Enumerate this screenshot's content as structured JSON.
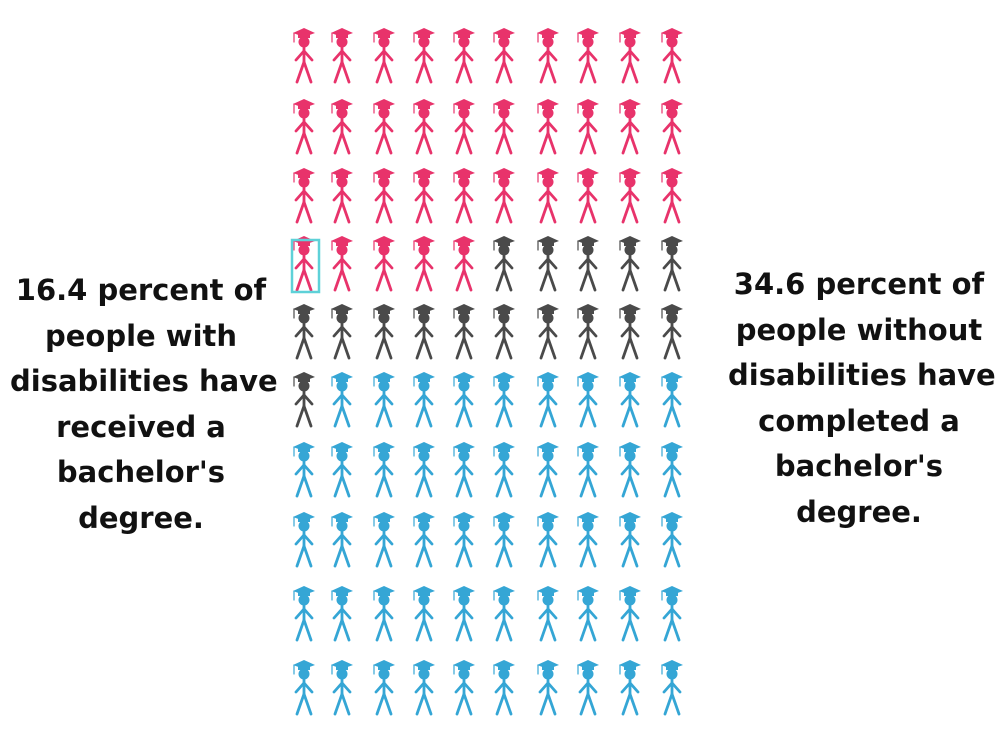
{
  "captions": {
    "left": [
      "16.4 percent of",
      "people with",
      "disabilities have",
      "received a",
      "bachelor's",
      "degree."
    ],
    "right": [
      "34.6 percent of",
      "people without",
      "disabilities have",
      "completed a",
      "bachelor's",
      "degree."
    ]
  },
  "chart_data": {
    "type": "pictograph",
    "rows": 10,
    "columns": 10,
    "total": 100,
    "groups": [
      {
        "count": 35,
        "color": "#e8336b"
      },
      {
        "count": 16,
        "color": "#4a4a4a"
      },
      {
        "count": 49,
        "color": "#35a6d5"
      }
    ],
    "highlight": {
      "index": 30,
      "color": "#5ed1d8"
    }
  }
}
